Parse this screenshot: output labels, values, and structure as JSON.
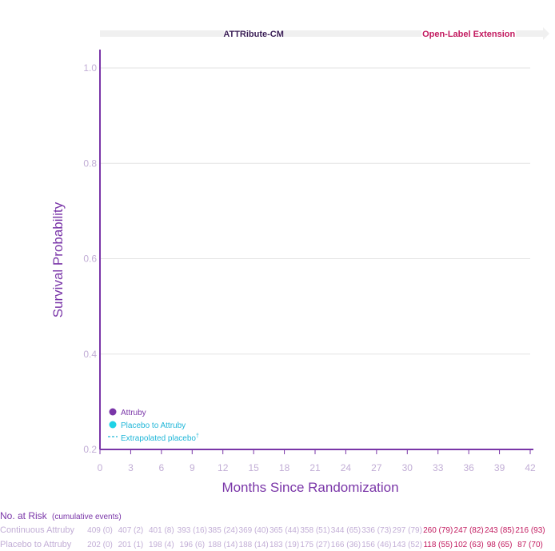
{
  "chart_data": {
    "type": "line",
    "title": "",
    "xlabel": "Months Since Randomization",
    "ylabel": "Survival Probability",
    "xlim": [
      0,
      42
    ],
    "ylim": [
      0.2,
      1.0
    ],
    "x_ticks": [
      "0",
      "3",
      "6",
      "9",
      "12",
      "15",
      "18",
      "21",
      "24",
      "27",
      "30",
      "33",
      "36",
      "39",
      "42"
    ],
    "y_ticks": [
      "1.0",
      "0.8",
      "0.6",
      "0.4",
      "0.2"
    ],
    "grid": "horizontal",
    "phases": [
      {
        "label": "ATTRibute-CM",
        "x_start": 0,
        "x_end": 30
      },
      {
        "label": "Open-Label Extension",
        "x_start": 30,
        "x_end": 42
      }
    ],
    "legend": {
      "placement": "bottom-left",
      "entries": [
        {
          "label": "Attruby",
          "marker": "dot",
          "color": "#7a36a8"
        },
        {
          "label": "Placebo to Attruby",
          "marker": "dot",
          "color": "#1fd2e6"
        },
        {
          "label": "Extrapolated placebo",
          "marker": "dashed-line",
          "color": "#1fb6d8",
          "superscript": "†"
        }
      ]
    },
    "series": [
      {
        "name": "Attruby",
        "color": "#7a36a8",
        "values": []
      },
      {
        "name": "Placebo to Attruby",
        "color": "#1fd2e6",
        "values": []
      }
    ]
  },
  "risk_table": {
    "title": "No. at Risk",
    "subtitle": "(cumulative events)",
    "months": [
      0,
      3,
      6,
      9,
      12,
      15,
      18,
      21,
      24,
      27,
      30,
      33,
      36,
      39,
      42
    ],
    "extension_start_index": 11,
    "rows": [
      {
        "label": "Continuous Attruby",
        "values": [
          "409 (0)",
          "407 (2)",
          "401 (8)",
          "393 (16)",
          "385 (24)",
          "369 (40)",
          "365 (44)",
          "358 (51)",
          "344 (65)",
          "336 (73)",
          "297 (79)",
          "260 (79)",
          "247 (82)",
          "243 (85)",
          "216 (93)"
        ]
      },
      {
        "label": "Placebo to Attruby",
        "values": [
          "202 (0)",
          "201 (1)",
          "198 (4)",
          "196 (6)",
          "188 (14)",
          "188 (14)",
          "183 (19)",
          "175 (27)",
          "166 (36)",
          "156 (46)",
          "143 (52)",
          "118 (55)",
          "102 (63)",
          "98 (65)",
          "87 (70)"
        ]
      }
    ]
  },
  "colors": {
    "axis": "#7a36a8",
    "grid": "#e3e3e3",
    "tick": "#c2aed6",
    "extension": "#c21a5f",
    "phase_bar": "#f0f0f0"
  }
}
